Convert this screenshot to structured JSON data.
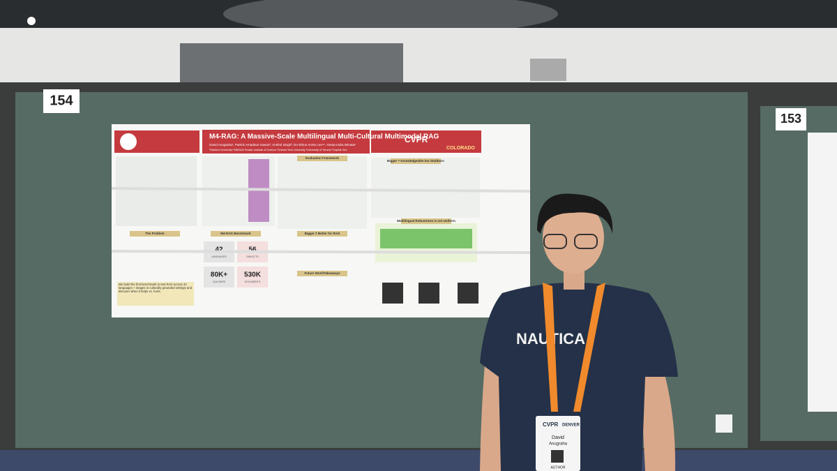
{
  "booth_numbers": [
    "154",
    "153"
  ],
  "poster": {
    "title": "M4-RAG: A Massive-Scale Multilingual Multi-Cultural Multimodal RAG",
    "authors": "David Anugraha¹, Patrick Amadeus Irawan², Anshul Singh³, En-Shiun Annie Lee⁴⁵, Genta Indra Winata⁶",
    "affiliations": "¹Stanford University ²MBZUAI ³Indian Institute of Science ⁴Ontario Tech University ⁵University of Toronto ⁶Capital One",
    "venue": "CVPR",
    "venue_location": "COLORADO",
    "sections": [
      "The Problem",
      "M4-RAG Benchmark",
      "Evaluation Framework",
      "Bigger ≠ Better for RAG",
      "Bigger = Knowledgeable but Stubborn",
      "Multilingual Robustness is not Uniform",
      "Future Work/Takeaways"
    ],
    "stats": [
      {
        "value": "42",
        "label": "LANGUAGES"
      },
      {
        "value": "56",
        "label": "DIALECTS"
      },
      {
        "value": "80K+",
        "label": "VQA PAIRS"
      },
      {
        "value": "530K",
        "label": "DOCUMENTS"
      }
    ],
    "callout": "We build the first benchmark to test RAG across 42 languages + images in culturally grounded settings and discover when it helps vs. hurts."
  },
  "badge": {
    "event": "CVPR",
    "city": "DENVER",
    "first_name": "David",
    "last_name": "Anugraha",
    "role": "AUTHOR"
  },
  "shirt_text": "NAUTICA"
}
